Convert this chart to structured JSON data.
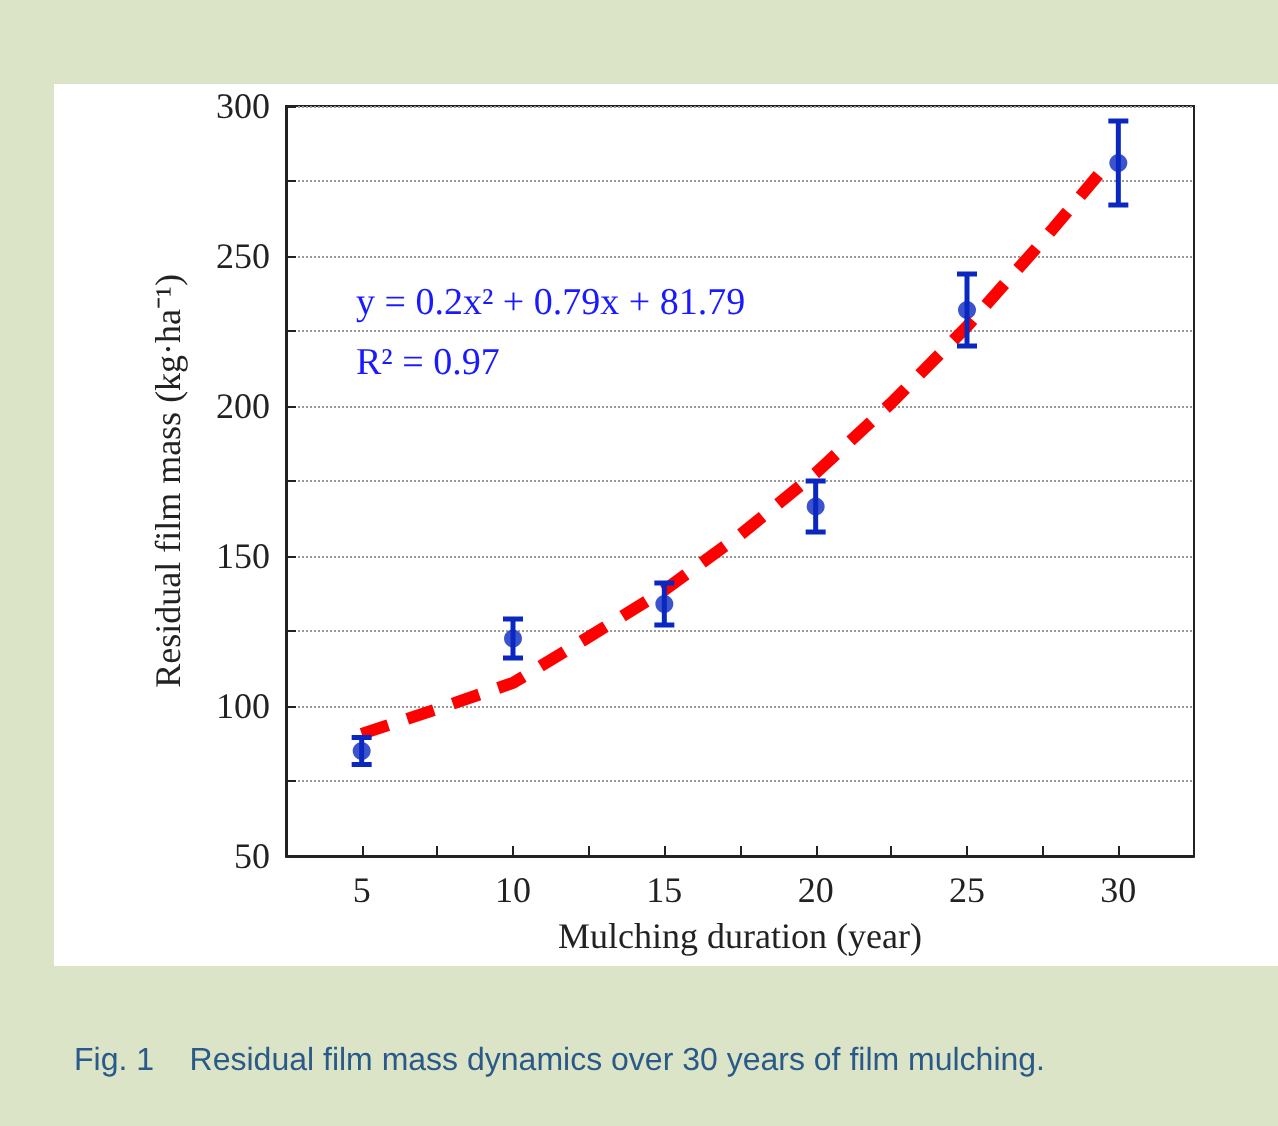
{
  "chart_data": {
    "type": "scatter",
    "xlabel": "Mulching duration (year)",
    "ylabel": "Residual film mass (kg·ha⁻¹)",
    "annotations": [
      "y = 0.2x² + 0.79x + 81.79",
      "R² = 0.97",
      "Fig. 1    Residual film mass dynamics over 30 years of film mulching."
    ],
    "x": [
      5,
      10,
      15,
      20,
      25,
      30
    ],
    "series": [
      {
        "color": "#0a28c0",
        "values": [
          85,
          122.5,
          134,
          166.5,
          232,
          281
        ],
        "errors": [
          4.5,
          6.5,
          7,
          8.5,
          12,
          14
        ],
        "marker": "circle"
      },
      {
        "type": "line",
        "color": "#ff0000",
        "line_style": "dashed",
        "marker": "none",
        "x": [
          5,
          7.5,
          10,
          12.5,
          15,
          17.5,
          20,
          22.5,
          25,
          27.5,
          29.5
        ],
        "values": [
          90.7,
          99,
          107.7,
          123,
          138.6,
          157,
          177.6,
          201,
          226.5,
          255,
          279
        ]
      }
    ],
    "xlim": [
      2.5,
      32.5
    ],
    "xticks": [
      5,
      {
        "value": 7.5,
        "label": null
      },
      10,
      {
        "value": 12.5,
        "label": null
      },
      15,
      {
        "value": 17.5,
        "label": null
      },
      20,
      {
        "value": 22.5,
        "label": null
      },
      25,
      {
        "value": 27.5,
        "label": null
      },
      30
    ],
    "ylim": [
      50,
      300
    ],
    "yticks": [
      50,
      {
        "value": 75,
        "label": null
      },
      100,
      {
        "value": 125,
        "label": null
      },
      150,
      {
        "value": 175,
        "label": null
      },
      200,
      {
        "value": 225,
        "label": null
      },
      250,
      {
        "value": 275,
        "label": null
      },
      300
    ],
    "grid": "y"
  }
}
